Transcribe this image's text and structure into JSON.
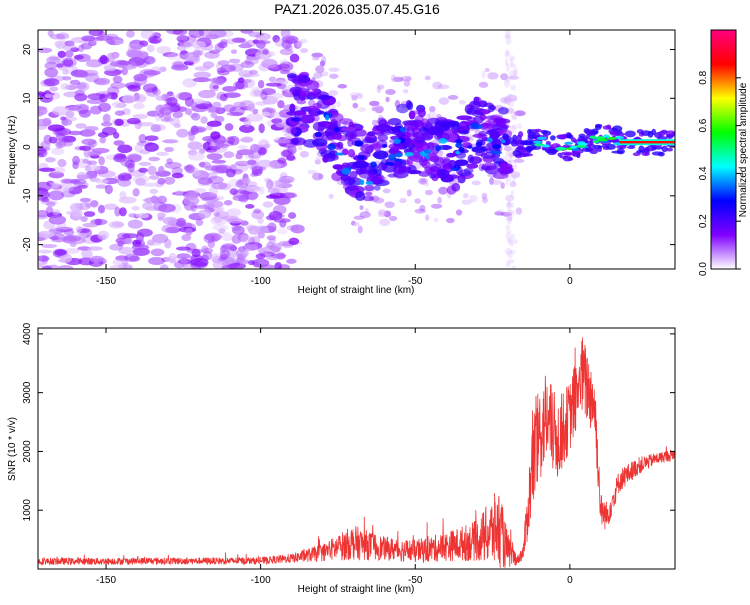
{
  "title": "PAZ1.2026.035.07.45.G16",
  "chart_data": [
    {
      "type": "heatmap",
      "name": "spectrogram",
      "xlabel": "Height of straight line (km)",
      "ylabel": "Frequency (Hz)",
      "xlim": [
        -172,
        34
      ],
      "ylim": [
        -25,
        24
      ],
      "x_ticks": [
        -150,
        -100,
        -50,
        0
      ],
      "y_ticks": [
        -20,
        -10,
        0,
        10,
        20
      ],
      "colorbar": {
        "label": "Normalized spectral amplitude",
        "range": [
          0,
          1
        ],
        "ticks": [
          0.0,
          0.2,
          0.4,
          0.6,
          0.8
        ],
        "tick_labels": [
          "0.0",
          "0.2",
          "0.4",
          "0.6",
          "0.8"
        ],
        "colors": [
          "#ffffff",
          "#8000ff",
          "#0000ff",
          "#00ffff",
          "#00ff00",
          "#ffff00",
          "#ff0000",
          "#ff0080"
        ]
      },
      "ridge": [
        {
          "x": -85,
          "f": 8
        },
        {
          "x": -78,
          "f": 3
        },
        {
          "x": -72,
          "f": -2
        },
        {
          "x": -66,
          "f": -4
        },
        {
          "x": -60,
          "f": -1
        },
        {
          "x": -52,
          "f": 2
        },
        {
          "x": -45,
          "f": 0
        },
        {
          "x": -38,
          "f": -2
        },
        {
          "x": -30,
          "f": 3
        },
        {
          "x": -20,
          "f": 0
        },
        {
          "x": -10,
          "f": 1
        },
        {
          "x": 0,
          "f": 0
        },
        {
          "x": 10,
          "f": 2
        },
        {
          "x": 20,
          "f": 1
        },
        {
          "x": 34,
          "f": 1
        }
      ]
    },
    {
      "type": "line",
      "name": "snr",
      "xlabel": "Height of straight line (km)",
      "ylabel": "SNR (10 * v/v)",
      "xlim": [
        -172,
        34
      ],
      "ylim": [
        0,
        4100
      ],
      "x_ticks": [
        -150,
        -100,
        -50,
        0
      ],
      "y_ticks": [
        1000,
        2000,
        3000,
        4000
      ],
      "color": "#ee3333",
      "envelope": [
        {
          "x": -172,
          "mean": 130,
          "spread": 60
        },
        {
          "x": -100,
          "mean": 140,
          "spread": 60
        },
        {
          "x": -90,
          "mean": 180,
          "spread": 80
        },
        {
          "x": -80,
          "mean": 280,
          "spread": 150
        },
        {
          "x": -70,
          "mean": 450,
          "spread": 300
        },
        {
          "x": -60,
          "mean": 350,
          "spread": 200
        },
        {
          "x": -50,
          "mean": 300,
          "spread": 200
        },
        {
          "x": -40,
          "mean": 380,
          "spread": 250
        },
        {
          "x": -30,
          "mean": 480,
          "spread": 350
        },
        {
          "x": -23,
          "mean": 700,
          "spread": 700
        },
        {
          "x": -20,
          "mean": 300,
          "spread": 300
        },
        {
          "x": -17,
          "mean": 150,
          "spread": 80
        },
        {
          "x": -15,
          "mean": 300,
          "spread": 150
        },
        {
          "x": -12,
          "mean": 1800,
          "spread": 900
        },
        {
          "x": -8,
          "mean": 2600,
          "spread": 800
        },
        {
          "x": -4,
          "mean": 2200,
          "spread": 700
        },
        {
          "x": 0,
          "mean": 2600,
          "spread": 600
        },
        {
          "x": 4,
          "mean": 3300,
          "spread": 700
        },
        {
          "x": 8,
          "mean": 2800,
          "spread": 600
        },
        {
          "x": 10,
          "mean": 1000,
          "spread": 300
        },
        {
          "x": 12,
          "mean": 900,
          "spread": 250
        },
        {
          "x": 16,
          "mean": 1500,
          "spread": 200
        },
        {
          "x": 22,
          "mean": 1750,
          "spread": 150
        },
        {
          "x": 28,
          "mean": 1880,
          "spread": 100
        },
        {
          "x": 34,
          "mean": 1950,
          "spread": 100
        }
      ]
    }
  ]
}
